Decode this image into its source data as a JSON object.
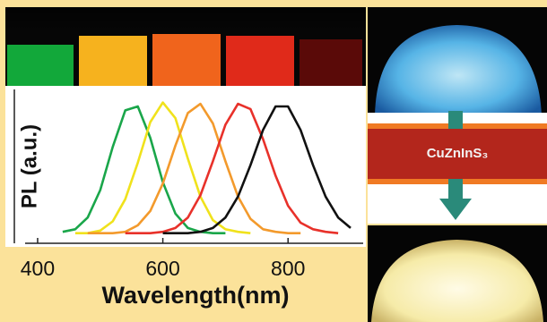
{
  "chart_data": {
    "type": "line",
    "x_label": "Wavelength(nm)",
    "y_label": "PL (a.u.)",
    "annotation": "CuZnInS₃",
    "x": [
      440,
      460,
      480,
      500,
      520,
      540,
      560,
      580,
      600,
      620,
      640,
      660,
      680,
      700,
      720,
      740,
      760,
      780,
      800,
      820,
      840,
      860,
      880,
      900
    ],
    "series": [
      {
        "color": "#1aa64a",
        "values": [
          0.01,
          0.03,
          0.12,
          0.33,
          0.66,
          0.94,
          0.97,
          0.73,
          0.39,
          0.15,
          0.04,
          0.01,
          0,
          0,
          null,
          null,
          null,
          null,
          null,
          null,
          null,
          null,
          null,
          null
        ]
      },
      {
        "color": "#f0e21c",
        "values": [
          null,
          0,
          0,
          0.02,
          0.09,
          0.26,
          0.54,
          0.85,
          1.0,
          0.88,
          0.57,
          0.28,
          0.1,
          0.03,
          0.01,
          0,
          null,
          null,
          null,
          null,
          null,
          null,
          null,
          null
        ]
      },
      {
        "color": "#f39a2c",
        "values": [
          null,
          null,
          0,
          0,
          0,
          0.01,
          0.06,
          0.17,
          0.38,
          0.67,
          0.92,
          0.99,
          0.84,
          0.55,
          0.28,
          0.11,
          0.03,
          0.01,
          0,
          0,
          null,
          null,
          null,
          null
        ]
      },
      {
        "color": "#e8312a",
        "values": [
          null,
          null,
          null,
          null,
          null,
          0,
          0,
          0,
          0.01,
          0.04,
          0.12,
          0.29,
          0.55,
          0.83,
          0.99,
          0.95,
          0.72,
          0.44,
          0.21,
          0.08,
          0.03,
          0.01,
          0,
          null
        ]
      },
      {
        "color": "#111111",
        "values": [
          null,
          null,
          null,
          null,
          null,
          null,
          null,
          null,
          0,
          0,
          0,
          0.01,
          0.04,
          0.12,
          0.28,
          0.52,
          0.79,
          0.97,
          0.97,
          0.79,
          0.52,
          0.28,
          0.12,
          0.04
        ]
      }
    ],
    "xlim": [
      380,
      920
    ],
    "xticks": [
      400,
      600,
      800
    ],
    "ylim": [
      -0.05,
      1.1
    ]
  }
}
